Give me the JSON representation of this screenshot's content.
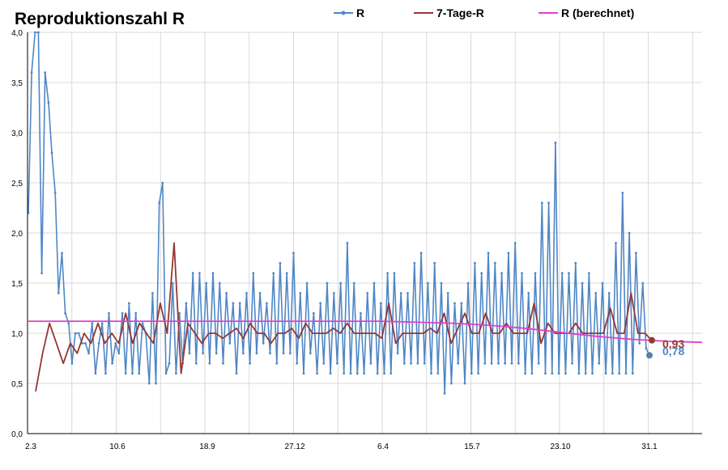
{
  "chart_data": {
    "type": "line",
    "title": "Reproduktionszahl R",
    "xlabel": "",
    "ylabel": "",
    "ylim": [
      0,
      4
    ],
    "y_ticks": [
      "0,0",
      "0,5",
      "1,0",
      "1,5",
      "2,0",
      "2,5",
      "3,0",
      "3,5",
      "4,0"
    ],
    "x_tick_labels": [
      "2.3",
      "10.6",
      "18.9",
      "27.12",
      "6.4",
      "15.7",
      "23.10",
      "31.1"
    ],
    "grid": true,
    "legend_position": "top",
    "colors": {
      "r": "#4f86c6",
      "r7": "#943634",
      "rcalc": "#e040d0",
      "grid": "#d9d9d9"
    },
    "series": [
      {
        "name": "R",
        "values": [
          2.2,
          3.6,
          4.0,
          4.0,
          1.6,
          3.6,
          3.3,
          2.8,
          2.4,
          1.4,
          1.8,
          1.2,
          1.1,
          0.7,
          1.0,
          1.0,
          0.9,
          0.9,
          0.8,
          1.1,
          0.6,
          0.9,
          1.1,
          0.6,
          1.2,
          0.7,
          0.9,
          0.8,
          1.2,
          0.6,
          1.3,
          0.6,
          1.2,
          0.6,
          1.1,
          1.0,
          0.5,
          1.4,
          0.5,
          2.3,
          2.5,
          0.6,
          0.7,
          1.5,
          0.6,
          1.2,
          0.7,
          1.3,
          0.8,
          1.6,
          0.7,
          1.6,
          0.8,
          1.5,
          0.7,
          1.6,
          0.8,
          1.5,
          0.7,
          1.4,
          0.9,
          1.3,
          0.6,
          1.3,
          0.8,
          1.4,
          0.7,
          1.6,
          0.8,
          1.4,
          0.9,
          1.3,
          0.8,
          1.6,
          0.7,
          1.7,
          0.8,
          1.6,
          0.8,
          1.8,
          0.7,
          1.4,
          0.6,
          1.5,
          0.8,
          1.2,
          0.6,
          1.3,
          0.7,
          1.5,
          0.6,
          1.4,
          0.7,
          1.5,
          0.6,
          1.9,
          0.6,
          1.5,
          0.6,
          1.2,
          0.6,
          1.4,
          0.7,
          1.5,
          0.6,
          1.3,
          0.6,
          1.6,
          0.6,
          1.6,
          0.8,
          1.4,
          0.7,
          1.4,
          0.7,
          1.7,
          0.7,
          1.8,
          0.7,
          1.5,
          0.6,
          1.7,
          0.6,
          1.5,
          0.4,
          1.4,
          0.5,
          1.3,
          0.7,
          1.3,
          0.5,
          1.5,
          0.6,
          1.7,
          0.6,
          1.6,
          0.7,
          1.8,
          0.7,
          1.7,
          0.7,
          1.6,
          0.7,
          1.8,
          0.7,
          1.9,
          0.7,
          1.6,
          0.6,
          1.4,
          0.6,
          1.6,
          0.7,
          2.3,
          0.6,
          2.3,
          0.6,
          2.9,
          0.6,
          1.6,
          0.6,
          1.6,
          0.7,
          1.7,
          0.6,
          1.5,
          0.6,
          1.6,
          0.6,
          1.4,
          0.7,
          1.5,
          0.6,
          1.4,
          0.6,
          1.9,
          0.6,
          2.4,
          0.6,
          2.0,
          0.6,
          1.8,
          0.9,
          1.5,
          0.85,
          0.78
        ]
      },
      {
        "name": "7-Tage-R",
        "values": [
          0.42,
          0.8,
          1.1,
          0.9,
          0.7,
          0.9,
          0.8,
          1.0,
          0.9,
          1.1,
          0.9,
          1.0,
          0.9,
          1.2,
          0.9,
          1.1,
          1.0,
          0.9,
          1.3,
          1.0,
          1.9,
          0.6,
          1.1,
          1.0,
          0.9,
          1.0,
          1.0,
          0.95,
          1.0,
          1.05,
          0.95,
          1.1,
          1.0,
          1.0,
          0.9,
          1.0,
          1.0,
          1.05,
          0.95,
          1.1,
          1.0,
          1.0,
          1.0,
          1.05,
          1.0,
          1.1,
          1.0,
          1.0,
          1.0,
          1.0,
          0.95,
          1.3,
          0.9,
          1.0,
          1.0,
          1.0,
          1.0,
          1.05,
          1.0,
          1.2,
          0.9,
          1.05,
          1.2,
          1.0,
          1.0,
          1.2,
          1.0,
          1.0,
          1.1,
          1.0,
          1.0,
          1.0,
          1.3,
          0.9,
          1.1,
          1.0,
          1.0,
          1.0,
          1.1,
          1.0,
          1.0,
          1.0,
          1.0,
          1.25,
          1.0,
          1.0,
          1.4,
          1.0,
          1.0,
          0.93
        ]
      },
      {
        "name": "R (berechnet)",
        "values": [
          1.12,
          1.12,
          1.12,
          1.12,
          1.12,
          1.12,
          1.12,
          1.12,
          1.12,
          1.12,
          1.12,
          1.11,
          1.1,
          1.08,
          1.05,
          1.01,
          0.97,
          0.94,
          0.92,
          0.91
        ]
      }
    ],
    "end_labels": [
      {
        "series": "7-Tage-R",
        "text": "0,93"
      },
      {
        "series": "R",
        "text": "0,78"
      }
    ]
  }
}
